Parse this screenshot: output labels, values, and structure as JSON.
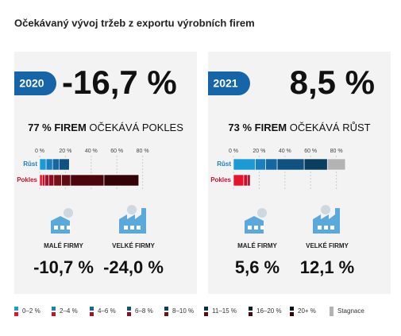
{
  "title": "Očekávaný vývoj tržeb z exportu výrobních firem",
  "panels": [
    {
      "year": "2020",
      "headline": "-16,7 %",
      "subtitle_bold": "77 % FIREM",
      "subtitle_rest": " OČEKÁVÁ POKLES",
      "xlim": [
        0,
        100
      ],
      "xticks": [
        {
          "value": 0,
          "label": "0 %"
        },
        {
          "value": 20,
          "label": "20 %"
        },
        {
          "value": 40,
          "label": "40 %"
        },
        {
          "value": 60,
          "label": "60 %"
        },
        {
          "value": 80,
          "label": "80 %"
        }
      ],
      "rows": [
        {
          "label": "Růst",
          "values": [
            5,
            5,
            5,
            8
          ],
          "colors": [
            "#1a9ad6",
            "#1a7fbf",
            "#14679f",
            "#0f5180"
          ]
        },
        {
          "label": "Pokles",
          "values": [
            2,
            2,
            3,
            4,
            6,
            7,
            26,
            27
          ],
          "colors": [
            "#e4142c",
            "#c8102e",
            "#a80f28",
            "#8e0c22",
            "#761018",
            "#5e0a12",
            "#4a060c",
            "#330308"
          ]
        }
      ],
      "firms": [
        {
          "label": "MALÉ FIRMY",
          "value": "-10,7 %"
        },
        {
          "label": "VELKÉ FIRMY",
          "value": "-24,0 %"
        }
      ]
    },
    {
      "year": "2021",
      "headline": "8,5 %",
      "subtitle_bold": "73 % FIREM",
      "subtitle_rest": " OČEKÁVÁ RŮST",
      "xlim": [
        0,
        100
      ],
      "xticks": [
        {
          "value": 0,
          "label": "0 %"
        },
        {
          "value": 20,
          "label": "20 %"
        },
        {
          "value": 40,
          "label": "40 %"
        },
        {
          "value": 60,
          "label": "60 %"
        },
        {
          "value": 80,
          "label": "80 %"
        }
      ],
      "rows": [
        {
          "label": "Růst",
          "values": [
            17,
            8,
            9,
            21,
            18,
            14
          ],
          "colors": [
            "#1a9ad6",
            "#1a7fbf",
            "#14679f",
            "#0f5180",
            "#0b3f60",
            "#b3b3b3"
          ]
        },
        {
          "label": "Pokles",
          "values": [
            8,
            3,
            2
          ],
          "colors": [
            "#e4142c",
            "#c8102e",
            "#a80f28"
          ]
        }
      ],
      "firms": [
        {
          "label": "MALÉ FIRMY",
          "value": "5,6 %"
        },
        {
          "label": "VELKÉ FIRMY",
          "value": "12,1 %"
        }
      ]
    }
  ],
  "legend": [
    {
      "label": "0–2 %",
      "colors": [
        "#1a9ad6",
        "#e4142c"
      ]
    },
    {
      "label": "2–4 %",
      "colors": [
        "#1a7fbf",
        "#c8102e"
      ]
    },
    {
      "label": "4–6 %",
      "colors": [
        "#14679f",
        "#a80f28"
      ]
    },
    {
      "label": "6–8 %",
      "colors": [
        "#0f5180",
        "#8e0c22"
      ]
    },
    {
      "label": "8–10 %",
      "colors": [
        "#0b3f60",
        "#761018"
      ]
    },
    {
      "label": "11–15 %",
      "colors": [
        "#0a2f48",
        "#5e0a12"
      ]
    },
    {
      "label": "16–20 %",
      "colors": [
        "#081f30",
        "#4a060c"
      ]
    },
    {
      "label": "20+ %",
      "colors": [
        "#050f18",
        "#330308"
      ]
    },
    {
      "label": "Stagnace",
      "colors": [
        "#b3b3b3"
      ]
    }
  ]
}
